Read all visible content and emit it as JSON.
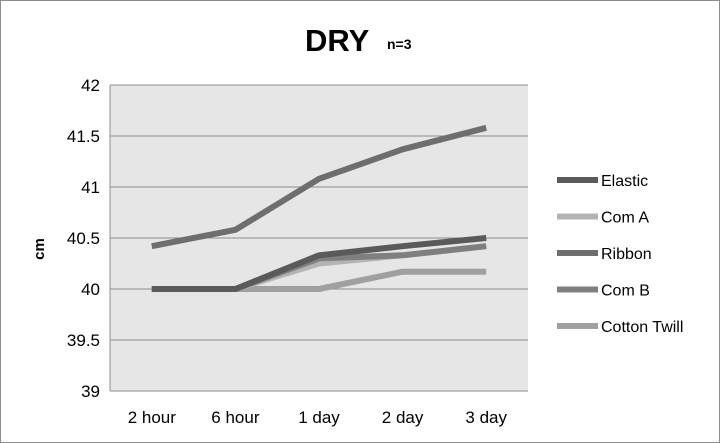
{
  "chart_data": {
    "type": "line",
    "title": "DRY",
    "subtitle": "n=3",
    "xlabel": "",
    "ylabel": "cm",
    "categories": [
      "2 hour",
      "6 hour",
      "1 day",
      "2 day",
      "3 day"
    ],
    "ylim": [
      39,
      42
    ],
    "yticks": [
      "39",
      "39.5",
      "40",
      "40.5",
      "41",
      "41.5",
      "42"
    ],
    "grid": true,
    "legend_position": "right",
    "series": [
      {
        "name": "Elastic",
        "color": "#5a5a5a",
        "values": [
          40.0,
          40.0,
          40.33,
          40.42,
          40.5
        ]
      },
      {
        "name": "Com A",
        "color": "#b4b4b4",
        "values": [
          40.0,
          40.0,
          40.25,
          40.33,
          40.42
        ]
      },
      {
        "name": "Ribbon",
        "color": "#6e6e6e",
        "values": [
          40.42,
          40.58,
          41.08,
          41.37,
          41.58
        ]
      },
      {
        "name": "Com B",
        "color": "#7f7f7f",
        "values": [
          40.0,
          40.0,
          40.3,
          40.33,
          40.42
        ]
      },
      {
        "name": "Cotton Twill",
        "color": "#a0a0a0",
        "values": [
          40.0,
          40.0,
          40.0,
          40.17,
          40.17
        ]
      }
    ]
  }
}
